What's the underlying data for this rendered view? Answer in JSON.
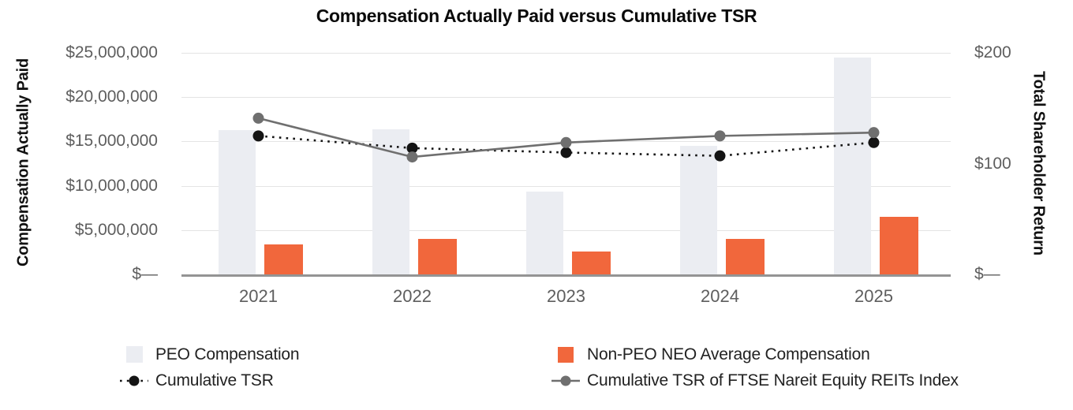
{
  "title": "Compensation Actually Paid versus Cumulative TSR",
  "axes": {
    "left": {
      "label": "Compensation Actually Paid",
      "max": 25000000,
      "ticks": [
        {
          "label": "$25,000,000",
          "value": 25000000
        },
        {
          "label": "$20,000,000",
          "value": 20000000
        },
        {
          "label": "$15,000,000",
          "value": 15000000
        },
        {
          "label": "$10,000,000",
          "value": 10000000
        },
        {
          "label": "$5,000,000",
          "value": 5000000
        },
        {
          "label": "$—",
          "value": 0
        }
      ]
    },
    "right": {
      "label": "Total Shareholder Return",
      "max": 200,
      "ticks": [
        {
          "label": "$200",
          "value": 200
        },
        {
          "label": "$100",
          "value": 100
        },
        {
          "label": "$—",
          "value": 0
        }
      ]
    }
  },
  "chart_data": {
    "type": "bar+line combo",
    "categories": [
      "2021",
      "2022",
      "2023",
      "2024",
      "2025"
    ],
    "series": [
      {
        "name": "PEO Compensation",
        "kind": "bar",
        "axis": "left",
        "color": "#ebedf2",
        "values": [
          16300000,
          16400000,
          9300000,
          14500000,
          24500000
        ]
      },
      {
        "name": "Non-PEO NEO Average Compensation",
        "kind": "bar",
        "axis": "left",
        "color": "#f1673c",
        "values": [
          3400000,
          4000000,
          2600000,
          4000000,
          6500000
        ]
      },
      {
        "name": "Cumulative TSR",
        "kind": "line",
        "style": "dotted",
        "axis": "right",
        "color": "#141414",
        "values": [
          125,
          114,
          110,
          107,
          119
        ]
      },
      {
        "name": "Cumulative TSR of FTSE Nareit Equity REITs Index",
        "kind": "line",
        "style": "solid",
        "axis": "right",
        "color": "#6f6f6f",
        "values": [
          141,
          106,
          119,
          125,
          128
        ]
      }
    ],
    "title": "Compensation Actually Paid versus Cumulative TSR",
    "xlabel": "",
    "ylabel_left": "Compensation Actually Paid",
    "ylabel_right": "Total Shareholder Return",
    "ylim_left": [
      0,
      25000000
    ],
    "ylim_right": [
      0,
      200
    ],
    "grid": true,
    "legend_position": "bottom"
  },
  "legend": {
    "items": [
      {
        "label": "PEO Compensation",
        "marker": "square",
        "color": "#ebedf2"
      },
      {
        "label": "Non-PEO NEO Average Compensation",
        "marker": "square",
        "color": "#f1673c"
      },
      {
        "label": "Cumulative TSR",
        "marker": "dotted-line-dot",
        "color": "#141414"
      },
      {
        "label": "Cumulative TSR of FTSE Nareit Equity REITs Index",
        "marker": "solid-line-dot",
        "color": "#6f6f6f"
      }
    ]
  },
  "colors": {
    "peo_bar": "#ebedf2",
    "neo_bar": "#f1673c",
    "tsr_line": "#141414",
    "index_line": "#6f6f6f",
    "gridline": "#e4e4e4",
    "axis_line": "#949494",
    "tick_text": "#5e5e5e",
    "title_text": "#0a0a0a"
  }
}
